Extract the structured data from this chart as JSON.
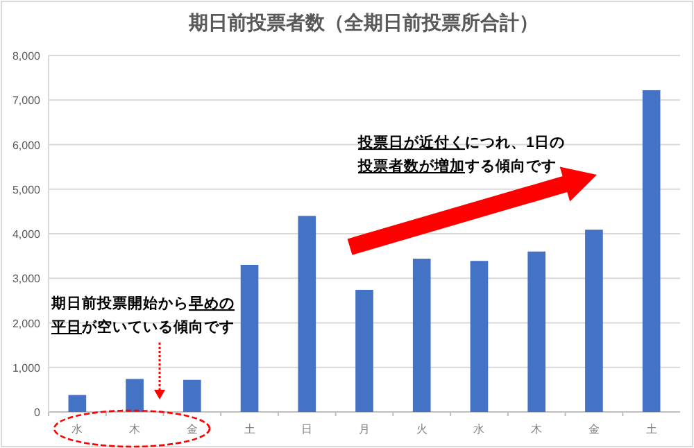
{
  "chart_data": {
    "type": "bar",
    "title": "期日前投票者数（全期日前投票所合計）",
    "categories": [
      "水",
      "木",
      "金",
      "土",
      "日",
      "月",
      "火",
      "水",
      "木",
      "金",
      "土"
    ],
    "values": [
      380,
      740,
      720,
      3300,
      4400,
      2740,
      3440,
      3390,
      3600,
      4090,
      7220
    ],
    "color": "#4472c4",
    "ylim": [
      0,
      8000
    ],
    "yticks": [
      {
        "value": 0,
        "label": "0"
      },
      {
        "value": 1000,
        "label": "1,000"
      },
      {
        "value": 2000,
        "label": "2,000"
      },
      {
        "value": 3000,
        "label": "3,000"
      },
      {
        "value": 4000,
        "label": "4,000"
      },
      {
        "value": 5000,
        "label": "5,000"
      },
      {
        "value": 6000,
        "label": "6,000"
      },
      {
        "value": 7000,
        "label": "7,000"
      },
      {
        "value": 8000,
        "label": "8,000"
      }
    ],
    "grid": "y",
    "annotations": [
      "期日前投票開始から早めの",
      "平日が空いている傾向です",
      "投票日が近付くにつれ、1日の",
      "投票者数が増加する傾向です"
    ]
  }
}
